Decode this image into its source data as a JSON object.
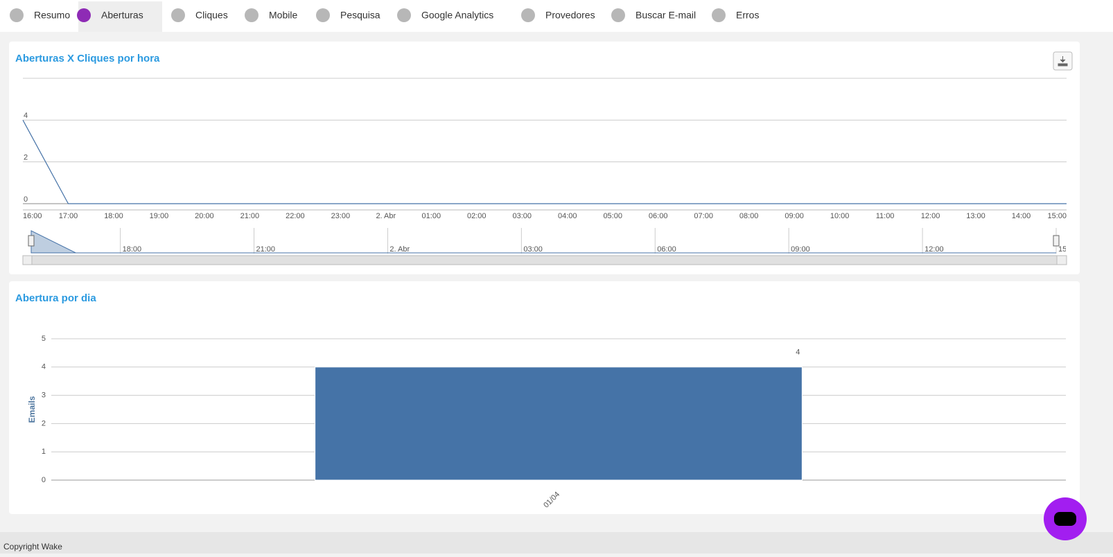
{
  "tabs": [
    "Resumo",
    "Aberturas",
    "Cliques",
    "Mobile",
    "Pesquisa",
    "Google Analytics",
    "Provedores",
    "Buscar E-mail",
    "Erros"
  ],
  "active_tab": 1,
  "footer": "Copyright Wake",
  "chart_data": [
    {
      "type": "line",
      "title": "Aberturas X Cliques por hora",
      "categories": [
        "16:00",
        "17:00",
        "18:00",
        "19:00",
        "20:00",
        "21:00",
        "22:00",
        "23:00",
        "2. Abr",
        "01:00",
        "02:00",
        "03:00",
        "04:00",
        "05:00",
        "06:00",
        "07:00",
        "08:00",
        "09:00",
        "10:00",
        "11:00",
        "12:00",
        "13:00",
        "14:00",
        "15:00"
      ],
      "series": [
        {
          "color": "#4572a7",
          "values": [
            4,
            0,
            0,
            0,
            0,
            0,
            0,
            0,
            0,
            0,
            0,
            0,
            0,
            0,
            0,
            0,
            0,
            0,
            0,
            0,
            0,
            0,
            0,
            0
          ]
        }
      ],
      "ylim": [
        0,
        6
      ],
      "yticks": [
        0,
        2,
        4
      ],
      "grid": true,
      "navigator_ticks": [
        2,
        5,
        8,
        11,
        14,
        17,
        20,
        23
      ]
    },
    {
      "type": "bar",
      "title": "Abertura por dia",
      "ylabel": "Emails",
      "categories": [
        "01/04"
      ],
      "values": [
        4
      ],
      "color": "#4573a7",
      "ylim": [
        0,
        5
      ],
      "yticks": [
        0,
        1,
        2,
        3,
        4,
        5
      ],
      "grid": true
    }
  ]
}
